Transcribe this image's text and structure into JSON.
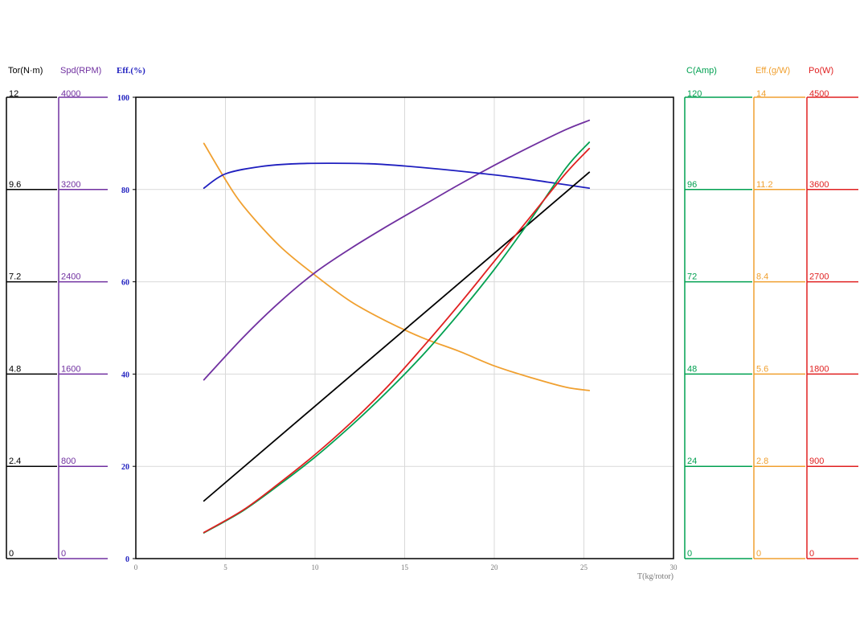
{
  "chart_data": {
    "type": "line",
    "xlabel": "T(kg/rotor)",
    "xlim": [
      0,
      30
    ],
    "x_ticks": [
      "0",
      "5",
      "10",
      "15",
      "20",
      "25",
      "30"
    ],
    "grid": true,
    "axes": [
      {
        "id": "tor",
        "title": "Tor(N·m)",
        "color": "#000000",
        "side": "left",
        "range": [
          0,
          12
        ],
        "ticks": [
          "0",
          "2.4",
          "4.8",
          "7.2",
          "9.6",
          "12"
        ]
      },
      {
        "id": "spd",
        "title": "Spd(RPM)",
        "color": "#7030a0",
        "side": "left",
        "range": [
          0,
          4000
        ],
        "ticks": [
          "0",
          "800",
          "1600",
          "2400",
          "3200",
          "4000"
        ]
      },
      {
        "id": "eff",
        "title": "Eff.(%)",
        "color": "#1f1fbf",
        "side": "left",
        "range": [
          0,
          100
        ],
        "ticks": [
          "0",
          "20",
          "40",
          "60",
          "80",
          "100"
        ]
      },
      {
        "id": "cur",
        "title": "C(Amp)",
        "color": "#00a050",
        "side": "right",
        "range": [
          0,
          120
        ],
        "ticks": [
          "0",
          "24",
          "48",
          "72",
          "96",
          "120"
        ]
      },
      {
        "id": "effg",
        "title": "Eff.(g/W)",
        "color": "#f0a030",
        "side": "right",
        "range": [
          0,
          14
        ],
        "ticks": [
          "0",
          "2.8",
          "5.6",
          "8.4",
          "11.2",
          "14"
        ]
      },
      {
        "id": "po",
        "title": "Po(W)",
        "color": "#e02020",
        "side": "right",
        "range": [
          0,
          4500
        ],
        "ticks": [
          "0",
          "900",
          "1800",
          "2700",
          "3600",
          "4500"
        ]
      }
    ],
    "series": [
      {
        "axis": "tor",
        "color": "#000000",
        "x": [
          3.8,
          25.3
        ],
        "y": [
          1.5,
          10.05
        ]
      },
      {
        "axis": "spd",
        "color": "#7030a0",
        "x": [
          3.8,
          6,
          8,
          10,
          12,
          14,
          16,
          18,
          20,
          22,
          24,
          25.3
        ],
        "y": [
          1550,
          1920,
          2220,
          2480,
          2690,
          2880,
          3060,
          3240,
          3410,
          3570,
          3720,
          3800
        ]
      },
      {
        "axis": "eff",
        "color": "#1f1fbf",
        "x": [
          3.8,
          5,
          7,
          9,
          11,
          13,
          15,
          17,
          19,
          21,
          23,
          25.3
        ],
        "y": [
          80.3,
          83.4,
          85.0,
          85.6,
          85.7,
          85.6,
          85.1,
          84.4,
          83.6,
          82.7,
          81.6,
          80.3
        ]
      },
      {
        "axis": "cur",
        "color": "#00a050",
        "x": [
          3.8,
          6,
          8,
          10,
          12,
          14,
          16,
          18,
          20,
          22,
          24,
          25.3
        ],
        "y": [
          6.7,
          12.5,
          19.2,
          26.4,
          34.5,
          43.3,
          52.9,
          63.6,
          75.2,
          88.0,
          101.6,
          108.3
        ]
      },
      {
        "axis": "effg",
        "color": "#f0a030",
        "x": [
          3.8,
          5,
          6,
          8,
          10,
          12,
          14,
          16,
          18,
          20,
          22,
          24,
          25.3
        ],
        "y": [
          12.6,
          11.5,
          10.7,
          9.5,
          8.6,
          7.8,
          7.2,
          6.7,
          6.3,
          5.85,
          5.5,
          5.2,
          5.1
        ]
      },
      {
        "axis": "po",
        "color": "#e02020",
        "x": [
          3.8,
          6,
          8,
          10,
          12,
          14,
          16,
          18,
          20,
          22,
          24,
          25.3
        ],
        "y": [
          255,
          475,
          735,
          1015,
          1325,
          1670,
          2060,
          2470,
          2900,
          3330,
          3760,
          4000
        ]
      }
    ]
  }
}
